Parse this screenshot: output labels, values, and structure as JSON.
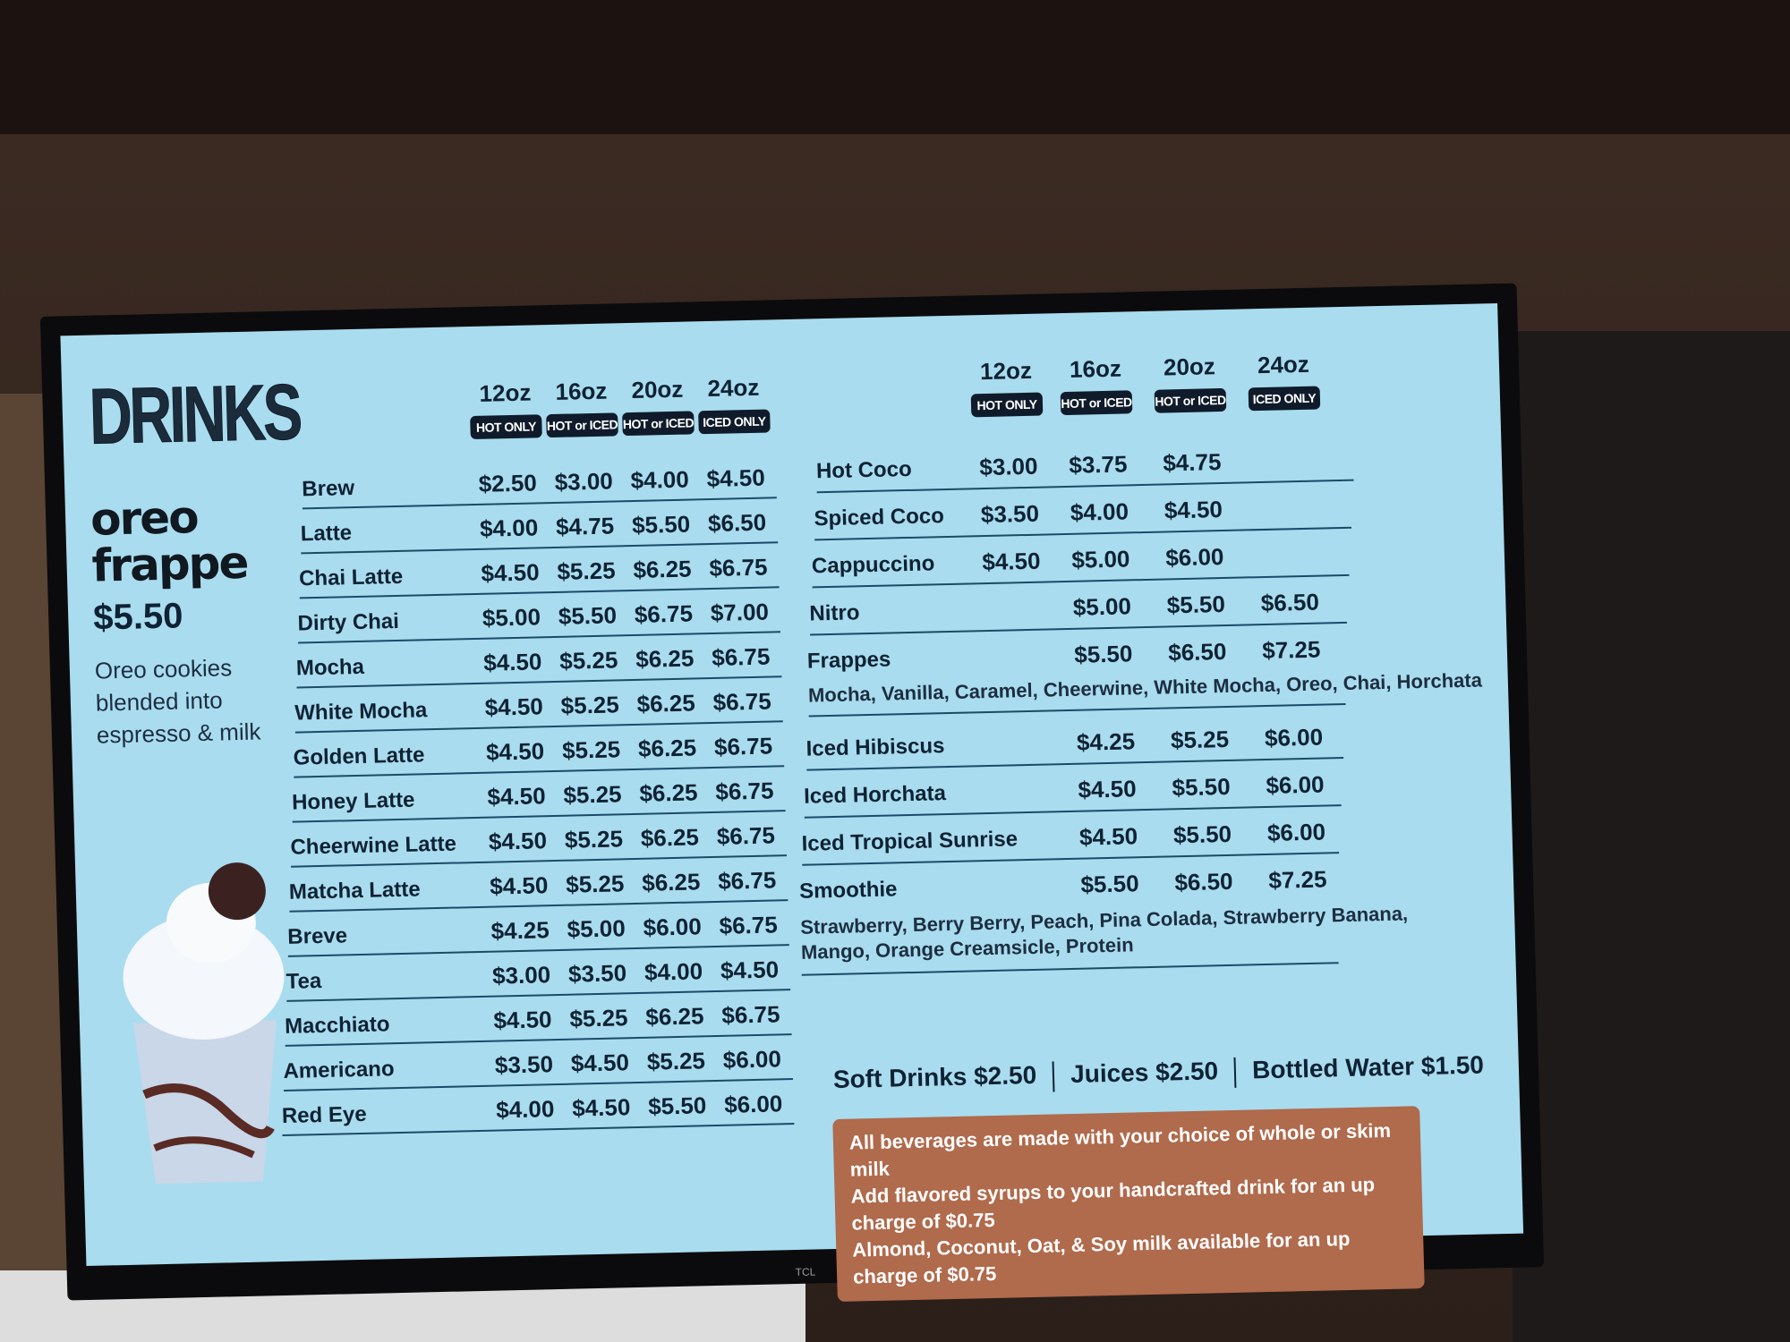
{
  "board": {
    "title": "DRINKS",
    "tv_brand": "TCL"
  },
  "promo": {
    "name_line1": "oreo",
    "name_line2": "frappe",
    "price": "$5.50",
    "desc_line1": "Oreo cookies",
    "desc_line2": "blended into",
    "desc_line3": "espresso & milk"
  },
  "left": {
    "sizes": [
      "12oz",
      "16oz",
      "20oz",
      "24oz"
    ],
    "badges": [
      "HOT ONLY",
      "HOT or ICED",
      "HOT or ICED",
      "ICED ONLY"
    ],
    "rows": [
      {
        "name": "Brew",
        "prices": [
          "$2.50",
          "$3.00",
          "$4.00",
          "$4.50"
        ]
      },
      {
        "name": "Latte",
        "prices": [
          "$4.00",
          "$4.75",
          "$5.50",
          "$6.50"
        ]
      },
      {
        "name": "Chai Latte",
        "prices": [
          "$4.50",
          "$5.25",
          "$6.25",
          "$6.75"
        ]
      },
      {
        "name": "Dirty Chai",
        "prices": [
          "$5.00",
          "$5.50",
          "$6.75",
          "$7.00"
        ]
      },
      {
        "name": "Mocha",
        "prices": [
          "$4.50",
          "$5.25",
          "$6.25",
          "$6.75"
        ]
      },
      {
        "name": "White Mocha",
        "prices": [
          "$4.50",
          "$5.25",
          "$6.25",
          "$6.75"
        ]
      },
      {
        "name": "Golden Latte",
        "prices": [
          "$4.50",
          "$5.25",
          "$6.25",
          "$6.75"
        ]
      },
      {
        "name": "Honey Latte",
        "prices": [
          "$4.50",
          "$5.25",
          "$6.25",
          "$6.75"
        ]
      },
      {
        "name": "Cheerwine Latte",
        "prices": [
          "$4.50",
          "$5.25",
          "$6.25",
          "$6.75"
        ]
      },
      {
        "name": "Matcha Latte",
        "prices": [
          "$4.50",
          "$5.25",
          "$6.25",
          "$6.75"
        ]
      },
      {
        "name": "Breve",
        "prices": [
          "$4.25",
          "$5.00",
          "$6.00",
          "$6.75"
        ]
      },
      {
        "name": "Tea",
        "prices": [
          "$3.00",
          "$3.50",
          "$4.00",
          "$4.50"
        ]
      },
      {
        "name": "Macchiato",
        "prices": [
          "$4.50",
          "$5.25",
          "$6.25",
          "$6.75"
        ]
      },
      {
        "name": "Americano",
        "prices": [
          "$3.50",
          "$4.50",
          "$5.25",
          "$6.00"
        ]
      },
      {
        "name": "Red Eye",
        "prices": [
          "$4.00",
          "$4.50",
          "$5.50",
          "$6.00"
        ]
      }
    ]
  },
  "right": {
    "sizes": [
      "12oz",
      "16oz",
      "20oz",
      "24oz"
    ],
    "badges": [
      "HOT ONLY",
      "HOT or ICED",
      "HOT or ICED",
      "ICED ONLY"
    ],
    "rows": [
      {
        "name": "Hot Coco",
        "prices": [
          "$3.00",
          "$3.75",
          "$4.75",
          ""
        ]
      },
      {
        "name": "Spiced Coco",
        "prices": [
          "$3.50",
          "$4.00",
          "$4.50",
          ""
        ]
      },
      {
        "name": "Cappuccino",
        "prices": [
          "$4.50",
          "$5.00",
          "$6.00",
          ""
        ]
      },
      {
        "name": "Nitro",
        "prices": [
          "",
          "$5.00",
          "$5.50",
          "$6.50"
        ]
      },
      {
        "name": "Frappes",
        "prices": [
          "",
          "$5.50",
          "$6.50",
          "$7.25"
        ],
        "flavors": "Mocha, Vanilla, Caramel, Cheerwine, White Mocha, Oreo, Chai, Horchata"
      },
      {
        "name": "Iced Hibiscus",
        "prices": [
          "",
          "$4.25",
          "$5.25",
          "$6.00"
        ]
      },
      {
        "name": "Iced Horchata",
        "prices": [
          "",
          "$4.50",
          "$5.50",
          "$6.00"
        ]
      },
      {
        "name": "Iced Tropical Sunrise",
        "prices": [
          "",
          "$4.50",
          "$5.50",
          "$6.00"
        ]
      },
      {
        "name": "Smoothie",
        "prices": [
          "",
          "$5.50",
          "$6.50",
          "$7.25"
        ],
        "flavors_line1": "Strawberry, Berry Berry, Peach, Pina Colada, Strawberry Banana,",
        "flavors_line2": "Mango, Orange Creamsicle, Protein"
      }
    ]
  },
  "misc": {
    "soft_drinks": "Soft Drinks $2.50",
    "juices": "Juices $2.50",
    "water": "Bottled Water $1.50"
  },
  "note": {
    "line1": "All beverages are made with your choice of whole or skim milk",
    "line2": "Add flavored syrups to your handcrafted drink for an up charge of $0.75",
    "line3": "Almond, Coconut, Oat, & Soy milk available for an up charge of $0.75"
  },
  "colors": {
    "screen_bg": "#a9dcef",
    "text": "#0f2233",
    "badge": "#0f1b2a",
    "note_bg": "#b06a4c"
  }
}
